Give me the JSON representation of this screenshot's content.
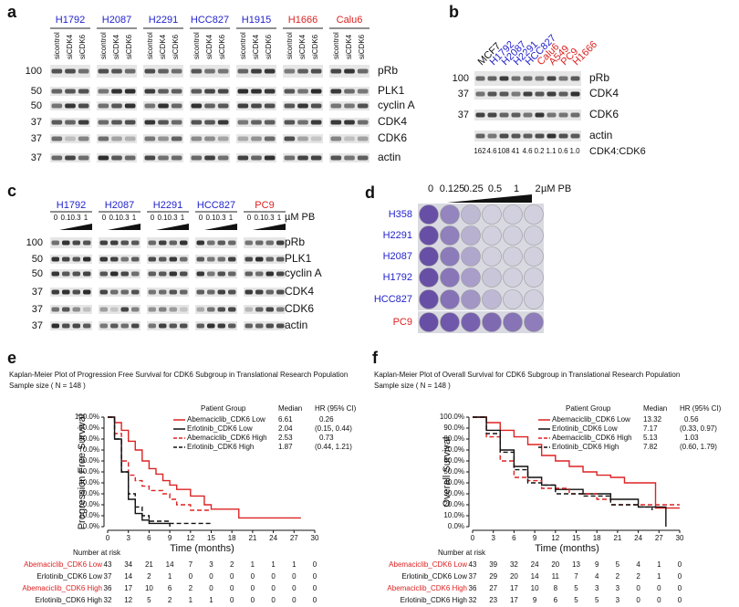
{
  "panels": {
    "a": {
      "label": "a",
      "cell_lines": [
        {
          "name": "H1792",
          "color": "#2222cc"
        },
        {
          "name": "H2087",
          "color": "#2222cc"
        },
        {
          "name": "H2291",
          "color": "#2222cc"
        },
        {
          "name": "HCC827",
          "color": "#2222cc"
        },
        {
          "name": "H1915",
          "color": "#2222cc"
        },
        {
          "name": "H1666",
          "color": "#dd2222"
        },
        {
          "name": "Calu6",
          "color": "#dd2222"
        }
      ],
      "lanes": [
        "sicontrol",
        "siCDK4",
        "siCDK6"
      ],
      "markers": [
        "100",
        "50",
        "50",
        "37",
        "37",
        "37"
      ],
      "proteins": [
        "pRb",
        "PLK1",
        "cyclin A",
        "CDK4",
        "CDK6",
        "actin"
      ]
    },
    "b": {
      "label": "b",
      "lanes": [
        {
          "name": "MCF7",
          "color": "#111111"
        },
        {
          "name": "H1792",
          "color": "#2222cc"
        },
        {
          "name": "H2087",
          "color": "#2222cc"
        },
        {
          "name": "H2291",
          "color": "#2222cc"
        },
        {
          "name": "HCC827",
          "color": "#2222cc"
        },
        {
          "name": "Calu6",
          "color": "#dd2222"
        },
        {
          "name": "A549",
          "color": "#dd2222"
        },
        {
          "name": "PC9",
          "color": "#dd2222"
        },
        {
          "name": "H1666",
          "color": "#dd2222"
        }
      ],
      "markers": [
        "100",
        "37",
        "37"
      ],
      "proteins": [
        "pRb",
        "CDK4",
        "CDK6",
        "actin"
      ],
      "ratios": [
        "162",
        "4.6",
        "108",
        "41",
        "4.6",
        "0.2",
        "1.1",
        "0.6",
        "1.0"
      ],
      "ratio_label": "CDK4:CDK6"
    },
    "c": {
      "label": "c",
      "cell_lines": [
        {
          "name": "H1792",
          "color": "#2222cc"
        },
        {
          "name": "H2087",
          "color": "#2222cc"
        },
        {
          "name": "H2291",
          "color": "#2222cc"
        },
        {
          "name": "HCC827",
          "color": "#2222cc"
        },
        {
          "name": "PC9",
          "color": "#dd2222"
        }
      ],
      "doses": [
        "0",
        "0.1",
        "0.3",
        "1"
      ],
      "unit": "µM PB",
      "markers": [
        "100",
        "50",
        "50",
        "37",
        "37",
        "37"
      ],
      "proteins": [
        "pRb",
        "PLK1",
        "cyclin A",
        "CDK4",
        "CDK6",
        "actin"
      ]
    },
    "d": {
      "label": "d",
      "doses": [
        "0",
        "0.125",
        "0.25",
        "0.5",
        "1",
        "2"
      ],
      "unit": "µM PB",
      "cell_lines": [
        {
          "name": "H358",
          "color": "#2222cc"
        },
        {
          "name": "H2291",
          "color": "#2222cc"
        },
        {
          "name": "H2087",
          "color": "#2222cc"
        },
        {
          "name": "H1792",
          "color": "#2222cc"
        },
        {
          "name": "HCC827",
          "color": "#2222cc"
        },
        {
          "name": "PC9",
          "color": "#dd2222"
        }
      ]
    }
  },
  "chart_data": [
    {
      "type": "km",
      "label": "e",
      "title": "Kaplan-Meier Plot of Progression Free Survival for CDK6 Subgroup in Translational Research Population",
      "subtitle": "Sample size ( N = 148 )",
      "y_label": "Progression Free Survival",
      "x_label": "Time (months)",
      "xlim": [
        0,
        30
      ],
      "xticks": [
        0,
        3,
        6,
        9,
        12,
        15,
        18,
        21,
        24,
        27,
        30
      ],
      "ylim": [
        0,
        100
      ],
      "yticks": [
        {
          "value": 0,
          "label": "0.0%"
        },
        {
          "value": 10,
          "label": "10.0%"
        },
        {
          "value": 20,
          "label": "20.0%"
        },
        {
          "value": 30,
          "label": "30.0%"
        },
        {
          "value": 40,
          "label": "40.0%"
        },
        {
          "value": 50,
          "label": "50.0%"
        },
        {
          "value": 60,
          "label": "60.0%"
        },
        {
          "value": 70,
          "label": "70.0%"
        },
        {
          "value": 80,
          "label": "80.0%"
        },
        {
          "value": 90,
          "label": "90.0%"
        },
        {
          "value": 100,
          "label": "100.0%"
        }
      ],
      "legend_header": [
        "Patient Group",
        "Median",
        "HR (95% CI)"
      ],
      "risk_title": "Number at risk",
      "series": [
        {
          "name": "Abemaciclib_CDK6 Low",
          "color": "#dd2222",
          "dashed": false,
          "median": 6.61,
          "hr": 0.26,
          "ci": "",
          "x": [
            0,
            1,
            2,
            3,
            4,
            5,
            6,
            7,
            8,
            9,
            10,
            12,
            14,
            15,
            19,
            28
          ],
          "values": [
            100,
            95,
            88,
            78,
            70,
            60,
            53,
            48,
            42,
            38,
            34,
            28,
            20,
            16,
            8,
            8
          ],
          "at_risk": [
            43,
            34,
            21,
            14,
            7,
            3,
            2,
            1,
            1,
            1,
            0
          ]
        },
        {
          "name": "Erlotinib_CDK6 Low",
          "color": "#111111",
          "dashed": false,
          "median": 2.04,
          "hr": null,
          "ci": "(0.15, 0.44)",
          "x": [
            0,
            1,
            2,
            3,
            4,
            5,
            6,
            9
          ],
          "values": [
            100,
            80,
            50,
            25,
            12,
            6,
            3,
            0
          ],
          "at_risk": [
            37,
            14,
            2,
            1,
            0,
            0,
            0,
            0,
            0,
            0,
            0
          ]
        },
        {
          "name": "Abemaciclib_CDK6 High",
          "color": "#dd2222",
          "dashed": true,
          "median": 2.53,
          "hr": 0.73,
          "ci": "",
          "x": [
            0,
            1,
            2,
            3,
            4,
            5,
            6,
            8,
            9,
            10,
            12,
            15
          ],
          "values": [
            100,
            85,
            60,
            47,
            42,
            37,
            33,
            30,
            25,
            20,
            15,
            15
          ],
          "at_risk": [
            36,
            17,
            10,
            6,
            2,
            0,
            0,
            0,
            0,
            0,
            0
          ]
        },
        {
          "name": "Erlotinib_CDK6 High",
          "color": "#111111",
          "dashed": true,
          "median": 1.87,
          "hr": null,
          "ci": "(0.44, 1.21)",
          "x": [
            0,
            1,
            2,
            3,
            4,
            5,
            6,
            9,
            15
          ],
          "values": [
            100,
            80,
            50,
            30,
            18,
            10,
            5,
            3,
            3
          ],
          "at_risk": [
            32,
            12,
            5,
            2,
            1,
            1,
            0,
            0,
            0,
            0,
            0
          ]
        }
      ]
    },
    {
      "type": "km",
      "label": "f",
      "title": "Kaplan-Meier Plot of Overall Survival for CDK6 Subgroup in Translational Research Population",
      "subtitle": "Sample size ( N = 148 )",
      "y_label": "Overall Survival",
      "x_label": "Time (months)",
      "xlim": [
        0,
        30
      ],
      "xticks": [
        0,
        3,
        6,
        9,
        12,
        15,
        18,
        21,
        24,
        27,
        30
      ],
      "ylim": [
        0,
        100
      ],
      "yticks": [
        {
          "value": 0,
          "label": "0.0%"
        },
        {
          "value": 10,
          "label": "10.0%"
        },
        {
          "value": 20,
          "label": "20.0%"
        },
        {
          "value": 30,
          "label": "30.0%"
        },
        {
          "value": 40,
          "label": "40.0%"
        },
        {
          "value": 50,
          "label": "50.0%"
        },
        {
          "value": 60,
          "label": "60.0%"
        },
        {
          "value": 70,
          "label": "70.0%"
        },
        {
          "value": 80,
          "label": "80.0%"
        },
        {
          "value": 90,
          "label": "90.0%"
        },
        {
          "value": 100,
          "label": "100.0%"
        }
      ],
      "legend_header": [
        "Patient Group",
        "Median",
        "HR (95% CI)"
      ],
      "risk_title": "Number at risk",
      "series": [
        {
          "name": "Abemaciclib_CDK6 Low",
          "color": "#dd2222",
          "dashed": false,
          "median": 13.32,
          "hr": 0.56,
          "ci": "",
          "x": [
            0,
            2,
            4,
            6,
            8,
            10,
            12,
            14,
            16,
            18,
            20,
            22,
            26.5,
            30
          ],
          "values": [
            100,
            95,
            88,
            82,
            75,
            65,
            60,
            55,
            50,
            47,
            45,
            40,
            17,
            17
          ],
          "at_risk": [
            43,
            39,
            32,
            24,
            20,
            13,
            9,
            5,
            4,
            1,
            0
          ]
        },
        {
          "name": "Erlotinib_CDK6 Low",
          "color": "#111111",
          "dashed": false,
          "median": 7.17,
          "hr": null,
          "ci": "(0.33, 0.97)",
          "x": [
            0,
            2,
            4,
            6,
            8,
            10,
            12,
            16,
            20,
            24,
            28
          ],
          "values": [
            100,
            88,
            70,
            55,
            45,
            38,
            34,
            30,
            25,
            18,
            0
          ],
          "at_risk": [
            37,
            29,
            20,
            14,
            11,
            7,
            4,
            2,
            2,
            1,
            0
          ]
        },
        {
          "name": "Abemaciclib_CDK6 High",
          "color": "#dd2222",
          "dashed": true,
          "median": 5.13,
          "hr": 1.03,
          "ci": "",
          "x": [
            0,
            2,
            4,
            6,
            8,
            10,
            14,
            18,
            20,
            30
          ],
          "values": [
            100,
            82,
            60,
            45,
            42,
            35,
            30,
            25,
            20,
            20
          ],
          "at_risk": [
            36,
            27,
            17,
            10,
            8,
            5,
            3,
            3,
            0,
            0,
            0
          ]
        },
        {
          "name": "Erlotinib_CDK6 High",
          "color": "#111111",
          "dashed": true,
          "median": 7.82,
          "hr": null,
          "ci": "(0.60, 1.79)",
          "x": [
            0,
            2,
            4,
            6,
            8,
            10,
            12,
            16,
            20,
            24,
            26
          ],
          "values": [
            100,
            85,
            68,
            52,
            40,
            38,
            30,
            28,
            20,
            18,
            15
          ],
          "at_risk": [
            32,
            23,
            17,
            9,
            6,
            5,
            5,
            3,
            0,
            0,
            0
          ]
        }
      ]
    }
  ]
}
